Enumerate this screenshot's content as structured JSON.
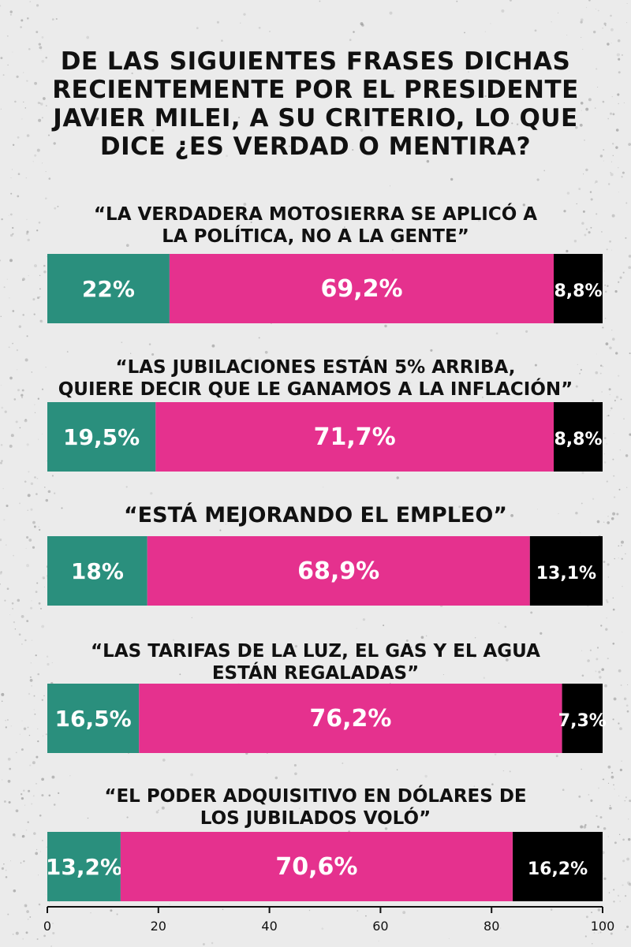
{
  "title": "DE LAS SIGUIENTES FRASES DICHAS\nRECIENTEMENTE POR EL PRESIDENTE\nJAVIER MILEI, A SU CRITERIO, LO QUE\nDICE ¿ES VERDAD O MENTIRA?",
  "colors": {
    "verdad": "#2a8f7d",
    "mentira": "#e5318e",
    "ns_nc": "#000000",
    "background": "#ebebeb"
  },
  "chart_data": {
    "type": "bar",
    "orientation": "horizontal-stacked",
    "title": "DE LAS SIGUIENTES FRASES DICHAS RECIENTEMENTE POR EL PRESIDENTE JAVIER MILEI, A SU CRITERIO, LO QUE DICE ¿ES VERDAD O MENTIRA?",
    "categories": [
      "“LA VERDADERA MOTOSIERRA SE APLICÓ A\nLA POLÍTICA, NO A LA GENTE”",
      "“LAS JUBILACIONES ESTÁN 5% ARRIBA,\nQUIERE DECIR QUE LE GANAMOS A LA INFLACIÓN”",
      "“ESTÁ MEJORANDO EL EMPLEO”",
      "“LAS TARIFAS DE LA LUZ, EL GAS Y EL AGUA\nESTÁN REGALADAS”",
      "“EL PODER ADQUISITIVO EN DÓLARES DE\nLOS JUBILADOS VOLÓ”"
    ],
    "series": [
      {
        "values": [
          22,
          19.5,
          18,
          16.5,
          13.2
        ],
        "labels": [
          "22%",
          "19,5%",
          "18%",
          "16,5%",
          "13,2%"
        ],
        "color": "#2a8f7d"
      },
      {
        "values": [
          69.2,
          71.7,
          68.9,
          76.2,
          70.6
        ],
        "labels": [
          "69,2%",
          "71,7%",
          "68,9%",
          "76,2%",
          "70,6%"
        ],
        "color": "#e5318e"
      },
      {
        "values": [
          8.8,
          8.8,
          13.1,
          7.3,
          16.2
        ],
        "labels": [
          "8,8%",
          "8,8%",
          "13,1%",
          "7,3%",
          "16,2%"
        ],
        "color": "#000000"
      }
    ],
    "xlim": [
      0,
      100
    ],
    "xticks": [
      "0",
      "20",
      "40",
      "60",
      "80",
      "100"
    ],
    "grid": false,
    "legend": "none"
  }
}
